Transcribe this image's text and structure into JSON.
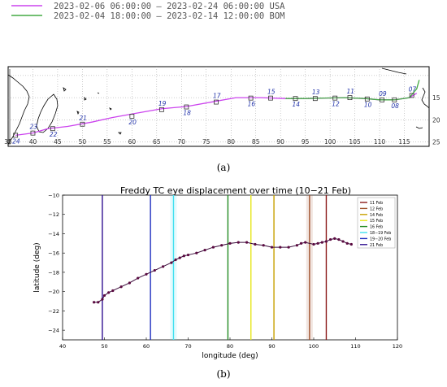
{
  "figure": {
    "caption_a": "(a)",
    "caption_b": "(b)"
  },
  "chart_data": [
    {
      "type": "line",
      "legend": [
        {
          "name": "2023-02-06 06:00:00 – 2023-02-24 06:00:00 USA",
          "color": "#cc44ee"
        },
        {
          "name": "2023-02-04 18:00:00 – 2023-02-14 12:00:00 BOM",
          "color": "#44aa44"
        }
      ],
      "x_ticks": [
        "35",
        "40",
        "45",
        "50",
        "55",
        "60",
        "65",
        "70",
        "75",
        "80",
        "85",
        "90",
        "95",
        "100",
        "105",
        "110",
        "115"
      ],
      "y_ticks": [
        "15",
        "20",
        "25"
      ],
      "xlim": [
        35,
        120
      ],
      "ylim": [
        -26,
        -8
      ],
      "grid": true,
      "series": [
        {
          "name": "USA",
          "color": "#cc44ee",
          "lon": [
            36.5,
            40,
            43,
            47,
            52,
            56,
            61,
            66,
            71,
            76,
            81,
            86,
            91,
            95,
            99,
            103,
            107,
            110,
            113,
            116,
            117.5
          ],
          "lat": [
            -23.5,
            -23,
            -22,
            -21.5,
            -20.5,
            -19.5,
            -18.5,
            -17.5,
            -17,
            -16,
            -15,
            -15,
            -15.2,
            -15.2,
            -15.1,
            -15,
            -15.2,
            -15.5,
            -15.5,
            -15,
            -14
          ]
        },
        {
          "name": "BOM",
          "color": "#44aa44",
          "lon": [
            91,
            95,
            99,
            103,
            107,
            110,
            113,
            116,
            117.5,
            118
          ],
          "lat": [
            -15.2,
            -15.2,
            -15.1,
            -15,
            -15.2,
            -15.5,
            -15.5,
            -15,
            -13,
            -11
          ]
        }
      ],
      "markers": [
        {
          "label": "24",
          "lon": 36.5,
          "lat": -23.5
        },
        {
          "label": "23",
          "lon": 40,
          "lat": -23
        },
        {
          "label": "22",
          "lon": 44,
          "lat": -22
        },
        {
          "label": "21",
          "lon": 50,
          "lat": -21
        },
        {
          "label": "20",
          "lon": 60,
          "lat": -19.2
        },
        {
          "label": "19",
          "lon": 66,
          "lat": -17.7
        },
        {
          "label": "18",
          "lon": 71,
          "lat": -17.1
        },
        {
          "label": "17",
          "lon": 77,
          "lat": -16
        },
        {
          "label": "16",
          "lon": 84,
          "lat": -15.1
        },
        {
          "label": "15",
          "lon": 88,
          "lat": -15.1
        },
        {
          "label": "14",
          "lon": 93,
          "lat": -15.2
        },
        {
          "label": "13",
          "lon": 97,
          "lat": -15.2
        },
        {
          "label": "12",
          "lon": 101,
          "lat": -15.1
        },
        {
          "label": "11",
          "lon": 104,
          "lat": -15
        },
        {
          "label": "10",
          "lon": 107.5,
          "lat": -15.3
        },
        {
          "label": "09",
          "lon": 110.5,
          "lat": -15.5
        },
        {
          "label": "08",
          "lon": 113,
          "lat": -15.5
        },
        {
          "label": "07",
          "lon": 116.5,
          "lat": -14.5
        }
      ]
    },
    {
      "type": "line",
      "title": "Freddy TC eye displacement over time (10−21 Feb)",
      "xlabel": "longitude (deg)",
      "ylabel": "latitude (deg)",
      "xlim": [
        40,
        120
      ],
      "ylim": [
        -25,
        -10
      ],
      "x_ticks": [
        40,
        50,
        60,
        70,
        80,
        90,
        100,
        110,
        120
      ],
      "y_ticks": [
        -10,
        -12,
        -14,
        -16,
        -18,
        -20,
        -22,
        -24
      ],
      "legend_position": "top-right",
      "legend": [
        {
          "label": "11 Feb",
          "color": "#8b1a1a"
        },
        {
          "label": "12 Feb",
          "color": "#a0522d"
        },
        {
          "label": "14 Feb",
          "color": "#c8a000"
        },
        {
          "label": "15 Feb",
          "color": "#e6e619"
        },
        {
          "label": "16 Feb",
          "color": "#228b22"
        },
        {
          "label": "18−19 Feb",
          "color": "#40e0f0"
        },
        {
          "label": "19−20 Feb",
          "color": "#2030c0"
        },
        {
          "label": "21 Feb",
          "color": "#301090"
        }
      ],
      "vlines": [
        {
          "x": 49.5,
          "color": "#301090"
        },
        {
          "x": 61,
          "color": "#2030c0"
        },
        {
          "x": 66.5,
          "color": "#40e0f0",
          "band": true
        },
        {
          "x": 79.5,
          "color": "#228b22"
        },
        {
          "x": 85,
          "color": "#e6e619"
        },
        {
          "x": 90.5,
          "color": "#c8a000"
        },
        {
          "x": 99,
          "color": "#a0522d",
          "band": true
        },
        {
          "x": 103,
          "color": "#8b1a1a"
        }
      ],
      "series": [
        {
          "name": "track",
          "x": [
            47.5,
            48.5,
            49.5,
            50,
            51,
            52,
            54,
            56,
            58,
            60,
            62,
            64,
            66,
            67,
            68,
            69,
            70,
            72,
            74,
            76,
            78,
            80,
            82,
            84,
            86,
            88,
            90,
            92,
            94,
            96,
            97,
            98,
            100,
            101,
            102,
            103,
            104,
            105,
            106,
            107,
            108,
            109
          ],
          "y": [
            -21.1,
            -21.1,
            -20.8,
            -20.4,
            -20.1,
            -19.9,
            -19.5,
            -19.1,
            -18.6,
            -18.2,
            -17.8,
            -17.4,
            -17.0,
            -16.7,
            -16.5,
            -16.3,
            -16.2,
            -16.0,
            -15.7,
            -15.4,
            -15.2,
            -15.0,
            -14.9,
            -14.9,
            -15.1,
            -15.2,
            -15.4,
            -15.4,
            -15.4,
            -15.2,
            -15.0,
            -14.9,
            -15.1,
            -15.0,
            -14.9,
            -14.8,
            -14.6,
            -14.5,
            -14.6,
            -14.8,
            -15.0,
            -15.1
          ]
        }
      ]
    }
  ]
}
